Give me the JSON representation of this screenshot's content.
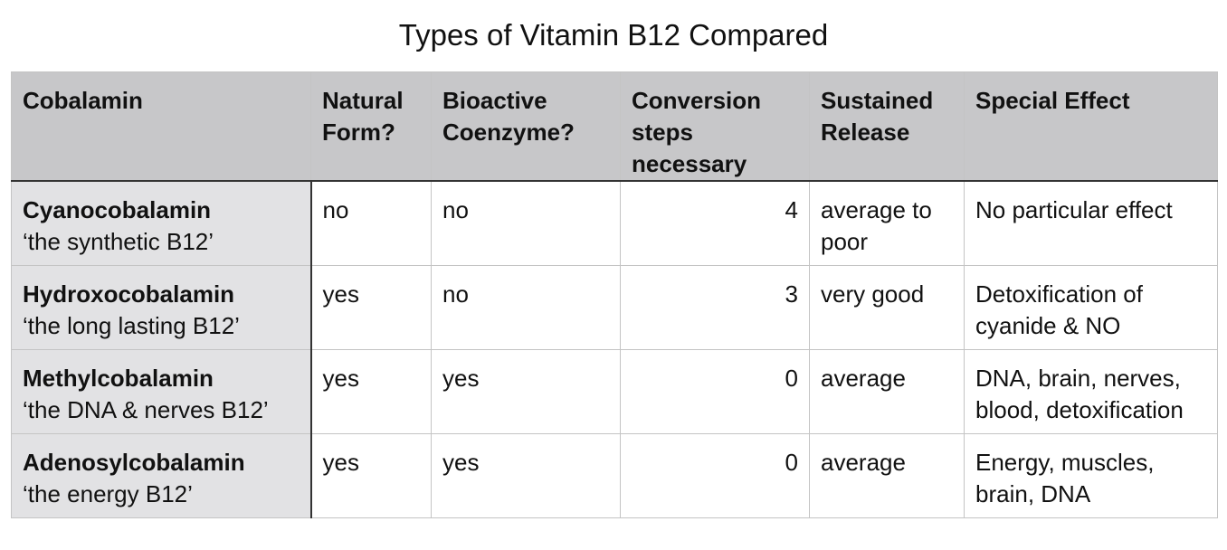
{
  "title": "Types of Vitamin B12 Compared",
  "table": {
    "headers": [
      "Cobalamin",
      "Natural Form?",
      "Bioactive Coenzyme?",
      "Conversion steps necessary",
      "Sustained Release",
      "Special Effect"
    ],
    "rows": [
      {
        "name": "Cyanocobalamin",
        "nickname": "‘the synthetic B12’",
        "natural": "no",
        "bioactive": "no",
        "steps": "4",
        "release": "average to poor",
        "effect": "No particular effect"
      },
      {
        "name": "Hydroxocobalamin",
        "nickname": "‘the long lasting B12’",
        "natural": "yes",
        "bioactive": "no",
        "steps": "3",
        "release": "very good",
        "effect": "Detoxification of cyanide & NO"
      },
      {
        "name": "Methylcobalamin",
        "nickname": "‘the DNA & nerves B12’",
        "natural": "yes",
        "bioactive": "yes",
        "steps": "0",
        "release": "average",
        "effect": "DNA, brain, nerves, blood, detoxification"
      },
      {
        "name": "Adenosylcobalamin",
        "nickname": "‘the energy B12’",
        "natural": "yes",
        "bioactive": "yes",
        "steps": "0",
        "release": "average",
        "effect": "Energy, muscles, brain, DNA"
      }
    ]
  }
}
